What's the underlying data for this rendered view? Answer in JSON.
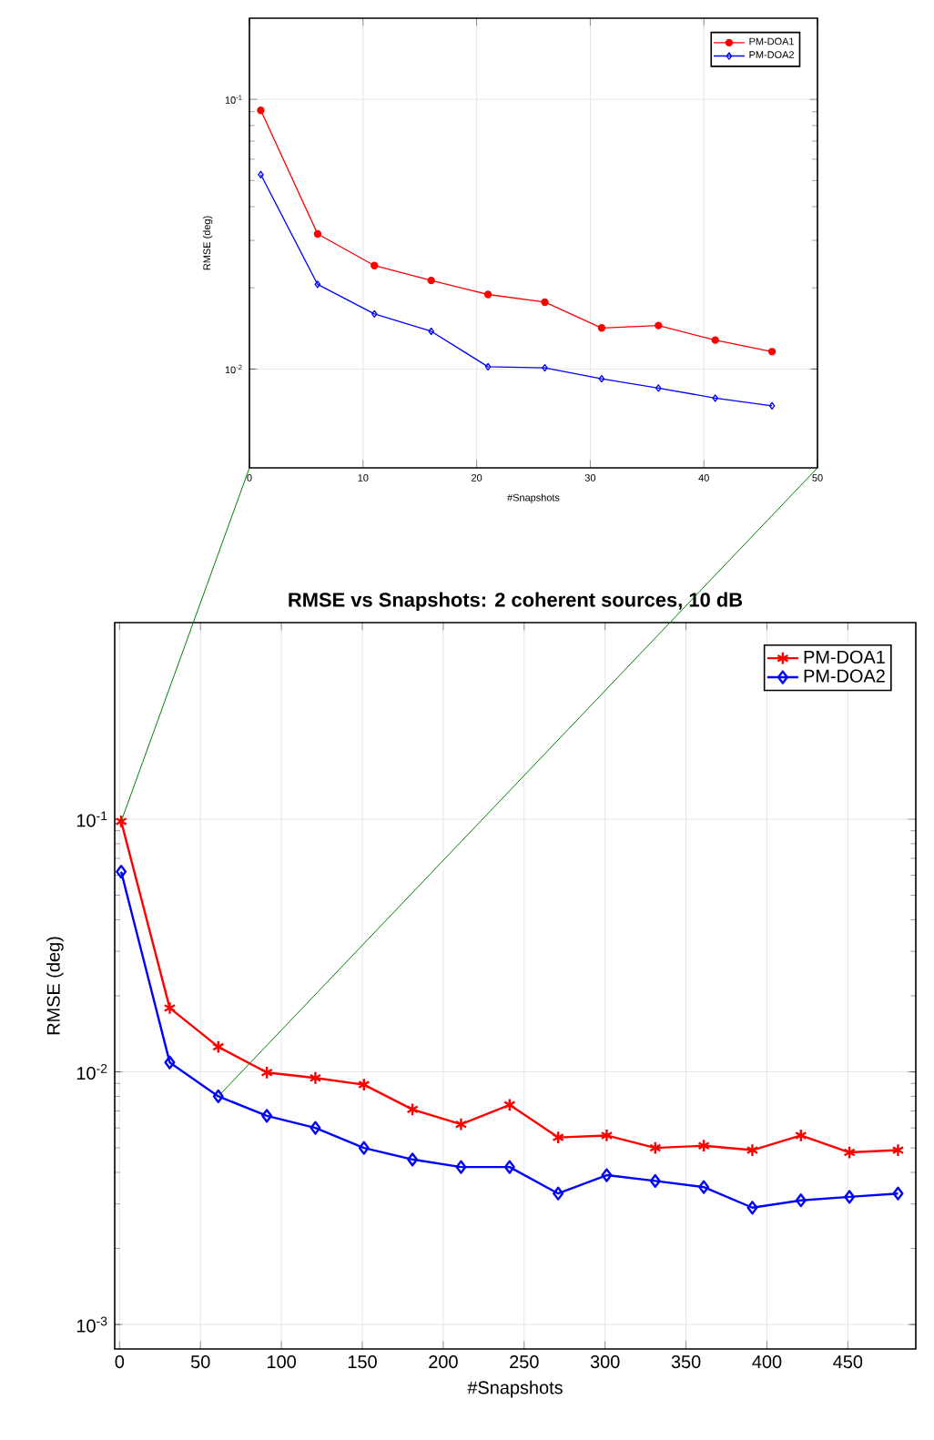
{
  "chart_data": [
    {
      "type": "line",
      "xlabel": "#Snapshots",
      "ylabel": "RMSE (deg)",
      "log": "y",
      "grid": true,
      "legend": "top right",
      "xlim": [
        0,
        50
      ],
      "ylim": [
        0.0043,
        0.2
      ],
      "xticks": [
        0,
        10,
        20,
        30,
        40,
        50
      ],
      "yticks": [
        {
          "value": 0.01,
          "label": "10$^{-2}$"
        },
        {
          "value": 0.1,
          "label": "10$^{-1}$"
        }
      ],
      "x": [
        1,
        6,
        11,
        16,
        21,
        26,
        31,
        36,
        41,
        46
      ],
      "series": [
        {
          "name": "PM-DOA1",
          "color": "#ff0000",
          "marker": "circle",
          "values": [
            0.091,
            0.0317,
            0.0242,
            0.0213,
            0.0189,
            0.0177,
            0.0142,
            0.0145,
            0.0128,
            0.0116
          ]
        },
        {
          "name": "PM-DOA2",
          "color": "#0000ff",
          "marker": "diamond",
          "values": [
            0.0526,
            0.0206,
            0.016,
            0.0138,
            0.0102,
            0.0101,
            0.0092,
            0.0085,
            0.0078,
            0.0073
          ]
        }
      ]
    },
    {
      "type": "line",
      "title": "RMSE vs Snapshots: 2 coherent sources, 10 dB",
      "xlabel": "#Snapshots",
      "ylabel": "RMSE (deg)",
      "log": "y",
      "grid": true,
      "legend": "top right",
      "xlim": [
        -3,
        492
      ],
      "ylim": [
        0.0008,
        0.6
      ],
      "xticks": [
        0,
        50,
        100,
        150,
        200,
        250,
        300,
        350,
        400,
        450
      ],
      "yticks": [
        {
          "value": 0.001,
          "label": "10$^{-3}$"
        },
        {
          "value": 0.01,
          "label": "10$^{-2}$"
        },
        {
          "value": 0.1,
          "label": "10$^{-1}$"
        }
      ],
      "x": [
        1,
        31,
        61,
        91,
        121,
        151,
        181,
        211,
        241,
        271,
        301,
        331,
        361,
        391,
        421,
        451,
        481
      ],
      "series": [
        {
          "name": "PM-DOA1",
          "color": "#ff0000",
          "marker": "cross",
          "values": [
            0.098,
            0.0179,
            0.01256,
            0.00994,
            0.00946,
            0.0089,
            0.0071,
            0.0062,
            0.0074,
            0.0055,
            0.0056,
            0.005,
            0.0051,
            0.0049,
            0.0056,
            0.0048,
            0.0049
          ]
        },
        {
          "name": "PM-DOA2",
          "color": "#0000ff",
          "marker": "diamond",
          "values": [
            0.062,
            0.0109,
            0.008,
            0.0067,
            0.006,
            0.005,
            0.0045,
            0.0042,
            0.0042,
            0.0033,
            0.0039,
            0.0037,
            0.0035,
            0.0029,
            0.0031,
            0.0032,
            0.0033
          ]
        }
      ]
    }
  ]
}
